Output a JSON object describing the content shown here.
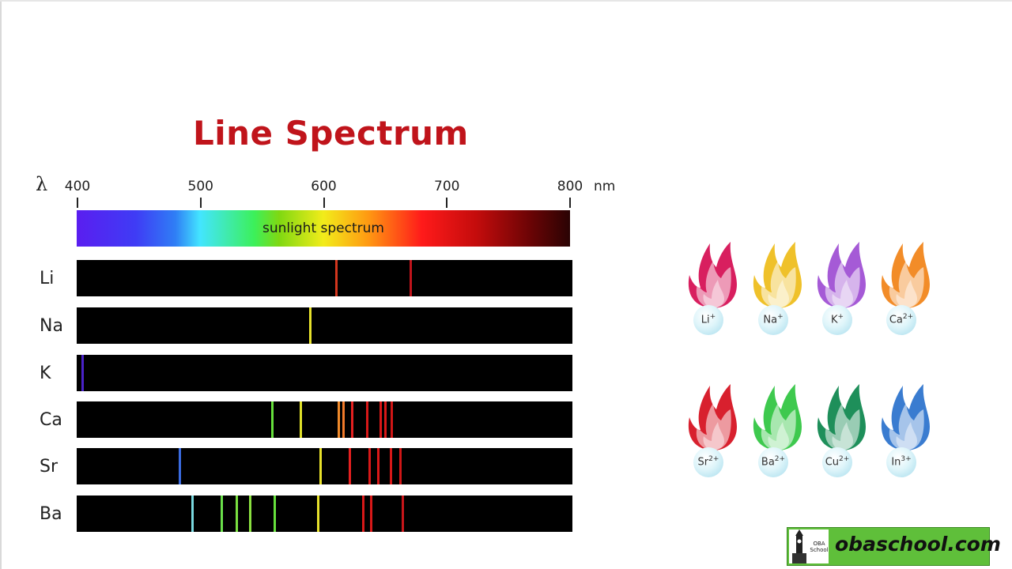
{
  "title": "Line Spectrum",
  "axis": {
    "symbol": "λ",
    "unit": "nm",
    "ticks": [
      {
        "label": "400",
        "value": 400
      },
      {
        "label": "500",
        "value": 500
      },
      {
        "label": "600",
        "value": 600
      },
      {
        "label": "700",
        "value": 700
      },
      {
        "label": "800",
        "value": 800
      }
    ]
  },
  "sunlight_label": "sunlight spectrum",
  "elements": [
    {
      "symbol": "Li",
      "lines": [
        {
          "nm": 610,
          "color": "#d3361e"
        },
        {
          "nm": 670,
          "color": "#c0141b"
        }
      ]
    },
    {
      "symbol": "Na",
      "lines": [
        {
          "nm": 589,
          "color": "#e6e12c"
        }
      ]
    },
    {
      "symbol": "K",
      "lines": [
        {
          "nm": 404,
          "color": "#4a22c8"
        }
      ]
    },
    {
      "symbol": "Ca",
      "lines": [
        {
          "nm": 558,
          "color": "#66e03c"
        },
        {
          "nm": 581,
          "color": "#e0e12a"
        },
        {
          "nm": 612,
          "color": "#f08a2a"
        },
        {
          "nm": 616,
          "color": "#f07a2a"
        },
        {
          "nm": 623,
          "color": "#e52020"
        },
        {
          "nm": 635,
          "color": "#d81818"
        },
        {
          "nm": 646,
          "color": "#d81818"
        },
        {
          "nm": 650,
          "color": "#d81818"
        },
        {
          "nm": 655,
          "color": "#d01616"
        }
      ]
    },
    {
      "symbol": "Sr",
      "lines": [
        {
          "nm": 483,
          "color": "#3a6be0"
        },
        {
          "nm": 597,
          "color": "#e8e12a"
        },
        {
          "nm": 621,
          "color": "#e52020"
        },
        {
          "nm": 637,
          "color": "#d81818"
        },
        {
          "nm": 644,
          "color": "#d81818"
        },
        {
          "nm": 654,
          "color": "#d81818"
        },
        {
          "nm": 662,
          "color": "#d01616"
        }
      ]
    },
    {
      "symbol": "Ba",
      "lines": [
        {
          "nm": 493,
          "color": "#7ad9e0"
        },
        {
          "nm": 517,
          "color": "#6ae04a"
        },
        {
          "nm": 529,
          "color": "#7ae040"
        },
        {
          "nm": 540,
          "color": "#8ae040"
        },
        {
          "nm": 560,
          "color": "#66e03c"
        },
        {
          "nm": 595,
          "color": "#e6e12c"
        },
        {
          "nm": 632,
          "color": "#d81818"
        },
        {
          "nm": 638,
          "color": "#d81818"
        },
        {
          "nm": 664,
          "color": "#c8161a"
        }
      ]
    }
  ],
  "flames": [
    {
      "ion": "Li",
      "charge": "+",
      "color": "#d81f5f"
    },
    {
      "ion": "Na",
      "charge": "+",
      "color": "#efc12a"
    },
    {
      "ion": "K",
      "charge": "+",
      "color": "#a55ad6"
    },
    {
      "ion": "Ca",
      "charge": "2+",
      "color": "#f28c28"
    },
    {
      "ion": "Sr",
      "charge": "2+",
      "color": "#d8202e"
    },
    {
      "ion": "Ba",
      "charge": "2+",
      "color": "#3ec94e"
    },
    {
      "ion": "Cu",
      "charge": "2+",
      "color": "#1e8f5a"
    },
    {
      "ion": "In",
      "charge": "3+",
      "color": "#3a7cd0"
    }
  ],
  "logo": {
    "text": "obaschool.com",
    "badge_line1": "OBA",
    "badge_line2": "School"
  }
}
